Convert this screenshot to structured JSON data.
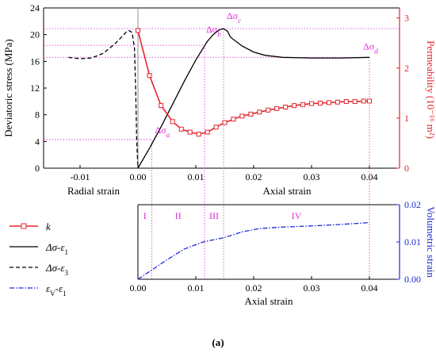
{
  "colors": {
    "axis": "#000000",
    "red": "#e3262d",
    "blue": "#1f2ad6",
    "magenta": "#e02bd8",
    "grey": "#8c8c8c"
  },
  "chart_data": [
    {
      "type": "line",
      "title": "",
      "ylabel": "Deviatoric stress (MPa)",
      "y2label": "Permeability (10⁻¹⁶ m²)",
      "xlabel_left": "Radial strain",
      "xlabel_right": "Axial strain",
      "xlim": [
        -0.018,
        0.045
      ],
      "ylim": [
        0,
        24
      ],
      "y2lim": [
        0,
        3.2
      ],
      "xticks": [
        "-0.01",
        "0.00",
        "0.01",
        "0.02",
        "0.03",
        "0.04"
      ],
      "xtick_values": [
        -0.01,
        0,
        0.01,
        0.02,
        0.03,
        0.04
      ],
      "yticks": [
        "0",
        "4",
        "8",
        "12",
        "16",
        "20",
        "24"
      ],
      "ytick_values": [
        0,
        4,
        8,
        12,
        16,
        20,
        24
      ],
      "y2ticks": [
        "0",
        "1",
        "2",
        "3"
      ],
      "y2tick_values": [
        0,
        1,
        2,
        3
      ],
      "series": [
        {
          "name": "Δσ-ε₁",
          "axis": "left",
          "style": "solid",
          "x": [
            0,
            0.002,
            0.004,
            0.006,
            0.008,
            0.01,
            0.011,
            0.012,
            0.013,
            0.014,
            0.0148,
            0.0155,
            0.016,
            0.018,
            0.02,
            0.022,
            0.025,
            0.03,
            0.035,
            0.04
          ],
          "y": [
            0,
            3.0,
            6.2,
            9.6,
            13.0,
            16.2,
            17.6,
            19.0,
            20.0,
            20.7,
            20.9,
            20.5,
            19.6,
            18.3,
            17.4,
            16.9,
            16.6,
            16.5,
            16.5,
            16.6
          ]
        },
        {
          "name": "Δσ-ε₃",
          "axis": "left",
          "style": "dashed",
          "x": [
            -0.012,
            -0.01,
            -0.008,
            -0.006,
            -0.004,
            -0.003,
            -0.002,
            -0.0015,
            -0.001,
            -0.0006,
            -0.0004,
            -0.0002,
            0
          ],
          "y": [
            16.6,
            16.4,
            16.5,
            17.2,
            18.6,
            19.5,
            20.4,
            20.6,
            20.3,
            18.0,
            12.0,
            4.0,
            0
          ]
        },
        {
          "name": "k",
          "axis": "right",
          "style": "marker-line",
          "x": [
            0,
            0.002,
            0.004,
            0.006,
            0.0075,
            0.009,
            0.0105,
            0.012,
            0.0135,
            0.015,
            0.0165,
            0.018,
            0.0195,
            0.021,
            0.0225,
            0.024,
            0.0255,
            0.027,
            0.0285,
            0.03,
            0.0315,
            0.033,
            0.0345,
            0.036,
            0.0375,
            0.039,
            0.04
          ],
          "y": [
            2.75,
            1.85,
            1.25,
            0.93,
            0.78,
            0.72,
            0.68,
            0.72,
            0.82,
            0.91,
            0.98,
            1.04,
            1.08,
            1.12,
            1.16,
            1.19,
            1.22,
            1.25,
            1.27,
            1.29,
            1.3,
            1.31,
            1.32,
            1.33,
            1.33,
            1.34,
            1.34
          ]
        }
      ],
      "annotations": [
        {
          "label": "Δσa",
          "main": "Δσ",
          "sub": "a",
          "x": 0.0024,
          "y": 4.3
        },
        {
          "label": "Δσb",
          "main": "Δσ",
          "sub": "b",
          "x": 0.0115,
          "y": 18.4
        },
        {
          "label": "Δσc",
          "main": "Δσ",
          "sub": "c",
          "x": 0.0148,
          "y": 20.9
        },
        {
          "label": "Δσd",
          "main": "Δσ",
          "sub": "d",
          "x": 0.04,
          "y": 16.6
        }
      ]
    },
    {
      "type": "line",
      "title": "",
      "xlabel": "Axial strain",
      "ylabel": "Volumetric strain",
      "xlim": [
        0,
        0.045
      ],
      "ylim": [
        0,
        0.02
      ],
      "xticks": [
        "0.00",
        "0.01",
        "0.02",
        "0.03",
        "0.04"
      ],
      "xtick_values": [
        0,
        0.01,
        0.02,
        0.03,
        0.04
      ],
      "yticks": [
        "0.00",
        "0.01",
        "0.02"
      ],
      "ytick_values": [
        0,
        0.01,
        0.02
      ],
      "series": [
        {
          "name": "εv-ε₁",
          "style": "dashdot",
          "x": [
            0,
            0.0024,
            0.005,
            0.008,
            0.0115,
            0.0148,
            0.018,
            0.021,
            0.025,
            0.03,
            0.035,
            0.04
          ],
          "y": [
            0,
            0.0025,
            0.0052,
            0.0081,
            0.0101,
            0.0111,
            0.0127,
            0.0136,
            0.014,
            0.0143,
            0.0147,
            0.0152
          ]
        }
      ],
      "stages": [
        "I",
        "II",
        "III",
        "IV"
      ],
      "stage_boundaries": [
        0.0024,
        0.0115,
        0.0148,
        0.04
      ]
    }
  ],
  "legend": {
    "items": [
      {
        "main": "k",
        "sub": "",
        "style": "marker-line"
      },
      {
        "main": "Δσ-ε",
        "sub": "1",
        "style": "solid"
      },
      {
        "main": "Δσ-ε",
        "sub": "3",
        "style": "dashed"
      },
      {
        "main": "ε",
        "sub": "V",
        "tail": "-ε",
        "sub2": "1",
        "style": "dashdot"
      }
    ]
  },
  "caption": "(a)"
}
